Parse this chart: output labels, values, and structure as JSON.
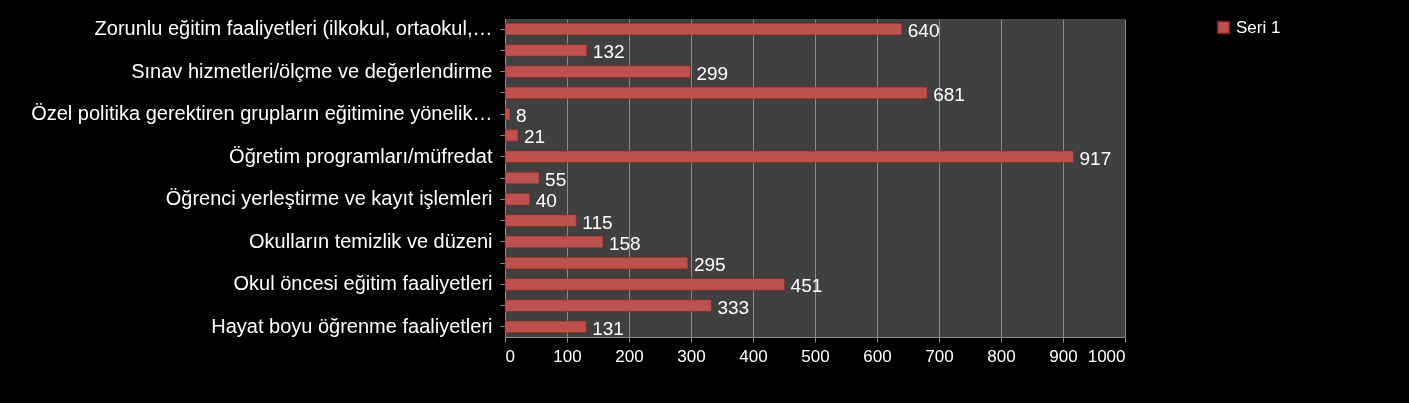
{
  "chart_data": {
    "type": "bar",
    "orientation": "horizontal",
    "categories": [
      "Zorunlu eğitim faaliyetleri (ilkokul, ortaokul,…",
      null,
      "Sınav hizmetleri/ölçme ve değerlendirme",
      null,
      "Özel politika gerektiren grupların eğitimine yönelik…",
      null,
      "Öğretim programları/müfredat",
      null,
      "Öğrenci yerleştirme ve kayıt işlemleri",
      null,
      "Okulların temizlik ve düzeni",
      null,
      "Okul öncesi eğitim faaliyetleri",
      null,
      "Hayat boyu öğrenme faaliyetleri"
    ],
    "series": [
      {
        "name": "Seri 1",
        "color": "#c0504d",
        "values": [
          640,
          132,
          299,
          681,
          8,
          21,
          917,
          55,
          40,
          115,
          158,
          295,
          451,
          333,
          131
        ]
      }
    ],
    "xlim": [
      0,
      1000
    ],
    "xticks": [
      0,
      100,
      200,
      300,
      400,
      500,
      600,
      700,
      800,
      900,
      1000
    ],
    "grid": "x",
    "legend": "right",
    "data_labels": true
  }
}
